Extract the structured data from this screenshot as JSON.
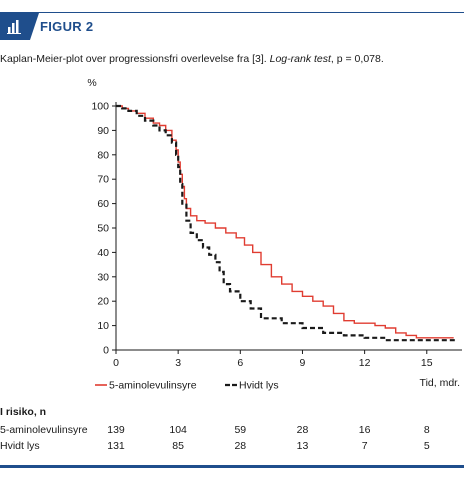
{
  "figure": {
    "label": "FIGUR 2",
    "icon": "bar-chart-icon",
    "accent_color": "#1f4e8c"
  },
  "caption": {
    "text": "Kaplan-Meier-plot over progressionsfri overlevelse fra [3]. ",
    "test_name": "Log-rank test",
    "p_value": ", p = 0,078."
  },
  "chart_data": {
    "type": "line",
    "ylabel": "%",
    "xlabel": "Tid, mdr.",
    "xlim": [
      0,
      16.7
    ],
    "ylim": [
      0,
      100
    ],
    "xticks": [
      0,
      3,
      6,
      9,
      12,
      15
    ],
    "yticks": [
      0,
      10,
      20,
      30,
      40,
      50,
      60,
      70,
      80,
      90,
      100
    ],
    "xtick_labels": [
      "0",
      "3",
      "6",
      "9",
      "12",
      "15"
    ],
    "ytick_labels": [
      "0",
      "10",
      "20",
      "30",
      "40",
      "50",
      "60",
      "70",
      "80",
      "90",
      "100"
    ],
    "grid": false,
    "legend_position": "bottom",
    "series": [
      {
        "name": "5-aminolevulinsyre",
        "color": "#e03c31",
        "style": "solid",
        "x": [
          0,
          0.3,
          0.6,
          1.0,
          1.4,
          1.8,
          2.1,
          2.4,
          2.7,
          2.9,
          3.0,
          3.1,
          3.2,
          3.3,
          3.4,
          3.6,
          3.9,
          4.3,
          4.8,
          5.3,
          5.8,
          6.2,
          6.6,
          7.0,
          7.5,
          8.0,
          8.5,
          9.0,
          9.5,
          10.0,
          10.5,
          11.0,
          11.5,
          12.0,
          12.5,
          13.0,
          13.5,
          14.0,
          14.5,
          15.0,
          15.5,
          16.3
        ],
        "y": [
          100,
          99,
          98,
          97,
          95,
          93,
          92,
          90,
          86,
          82,
          77,
          72,
          67,
          62,
          58,
          55,
          53,
          52,
          50,
          48,
          46,
          43,
          40,
          35,
          30,
          27,
          24,
          22,
          20,
          18,
          15,
          12,
          11,
          11,
          10,
          9,
          7,
          6,
          5,
          5,
          5,
          5
        ]
      },
      {
        "name": "Hvidt lys",
        "color": "#1a1a1a",
        "style": "dashed",
        "x": [
          0,
          0.3,
          0.6,
          1.0,
          1.4,
          1.8,
          2.1,
          2.4,
          2.7,
          2.9,
          3.0,
          3.1,
          3.2,
          3.4,
          3.6,
          3.9,
          4.2,
          4.5,
          4.8,
          5.0,
          5.2,
          5.5,
          6.0,
          6.5,
          7.0,
          8.0,
          9.0,
          10.0,
          11.0,
          12.0,
          13.0,
          14.0,
          15.0,
          15.5,
          16.3
        ],
        "y": [
          100,
          99,
          98,
          96,
          94,
          92,
          90,
          88,
          85,
          80,
          75,
          68,
          60,
          53,
          48,
          45,
          42,
          39,
          36,
          32,
          27,
          24,
          20,
          17,
          13,
          11,
          9,
          7,
          6,
          5,
          4,
          4,
          4,
          4,
          3
        ]
      }
    ]
  },
  "risk_table": {
    "title": "I risiko, n",
    "columns_x": [
      0,
      3,
      6,
      9,
      12,
      15
    ],
    "rows": [
      {
        "name": "5-aminolevulinsyre",
        "values": [
          "139",
          "104",
          "59",
          "28",
          "16",
          "8"
        ]
      },
      {
        "name": "Hvidt lys",
        "values": [
          "131",
          "85",
          "28",
          "13",
          "7",
          "5"
        ]
      }
    ]
  }
}
